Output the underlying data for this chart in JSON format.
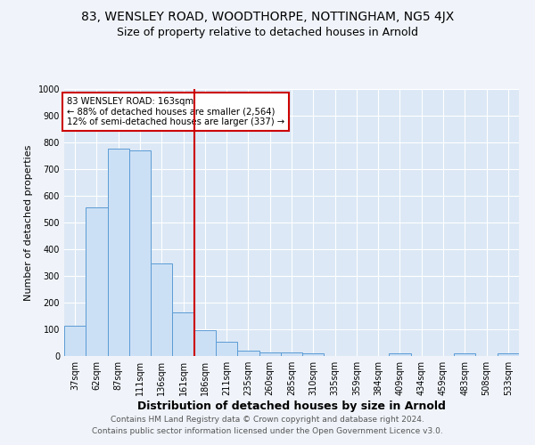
{
  "title_line1": "83, WENSLEY ROAD, WOODTHORPE, NOTTINGHAM, NG5 4JX",
  "title_line2": "Size of property relative to detached houses in Arnold",
  "xlabel": "Distribution of detached houses by size in Arnold",
  "ylabel": "Number of detached properties",
  "bar_labels": [
    "37sqm",
    "62sqm",
    "87sqm",
    "111sqm",
    "136sqm",
    "161sqm",
    "186sqm",
    "211sqm",
    "235sqm",
    "260sqm",
    "285sqm",
    "310sqm",
    "335sqm",
    "359sqm",
    "384sqm",
    "409sqm",
    "434sqm",
    "459sqm",
    "483sqm",
    "508sqm",
    "533sqm"
  ],
  "bar_values": [
    113,
    557,
    778,
    770,
    347,
    163,
    97,
    52,
    20,
    13,
    13,
    10,
    0,
    0,
    0,
    10,
    0,
    0,
    10,
    0,
    10
  ],
  "bar_color": "#cce0f5",
  "bar_edge_color": "#5b9bd5",
  "vline_x": 5.5,
  "vline_color": "#cc0000",
  "annotation_text": "83 WENSLEY ROAD: 163sqm\n← 88% of detached houses are smaller (2,564)\n12% of semi-detached houses are larger (337) →",
  "annotation_box_color": "#ffffff",
  "annotation_box_edge": "#cc0000",
  "ylim": [
    0,
    1000
  ],
  "yticks": [
    0,
    100,
    200,
    300,
    400,
    500,
    600,
    700,
    800,
    900,
    1000
  ],
  "footer_line1": "Contains HM Land Registry data © Crown copyright and database right 2024.",
  "footer_line2": "Contains public sector information licensed under the Open Government Licence v3.0.",
  "fig_bg_color": "#f0f4fa",
  "plot_bg_color": "#dce8f5",
  "title1_fontsize": 10,
  "title2_fontsize": 9,
  "xlabel_fontsize": 9,
  "ylabel_fontsize": 8,
  "tick_fontsize": 7,
  "footer_fontsize": 6.5
}
